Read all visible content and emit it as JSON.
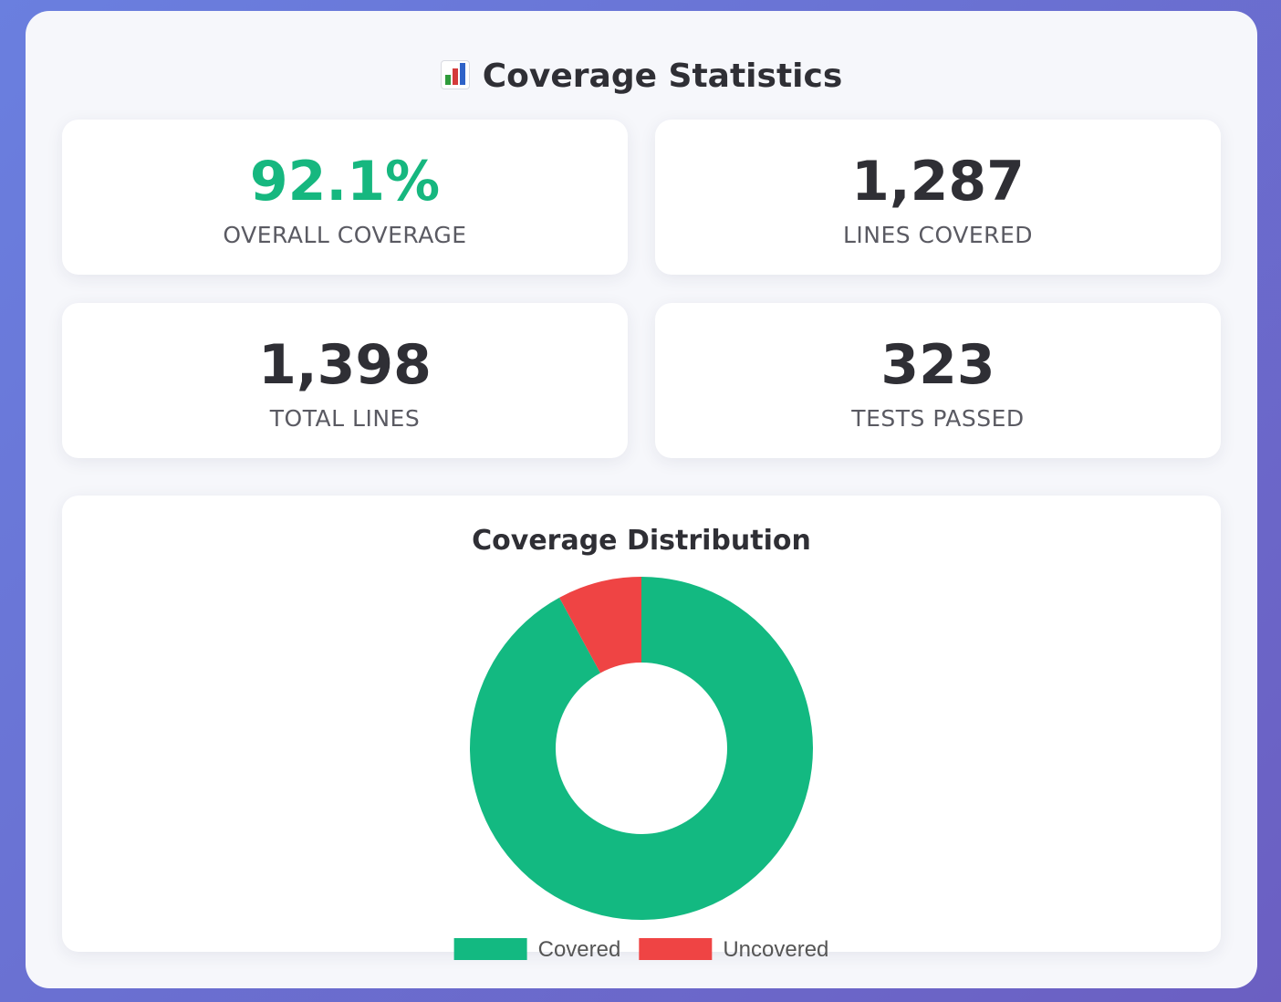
{
  "header": {
    "title": "Coverage Statistics",
    "icon": "bar-chart-icon"
  },
  "stats": [
    {
      "value": "92.1%",
      "label": "OVERALL COVERAGE",
      "color": "#16b77f"
    },
    {
      "value": "1,287",
      "label": "LINES COVERED",
      "color": "#2f2f35"
    },
    {
      "value": "1,398",
      "label": "TOTAL LINES",
      "color": "#2f2f35"
    },
    {
      "value": "323",
      "label": "TESTS PASSED",
      "color": "#2f2f35"
    }
  ],
  "chart_data": {
    "type": "pie",
    "subtype": "doughnut",
    "title": "Coverage Distribution",
    "categories": [
      "Covered",
      "Uncovered"
    ],
    "values": [
      1287,
      111
    ],
    "colors": [
      "#13b981",
      "#ef4444"
    ],
    "legend": "bottom"
  }
}
